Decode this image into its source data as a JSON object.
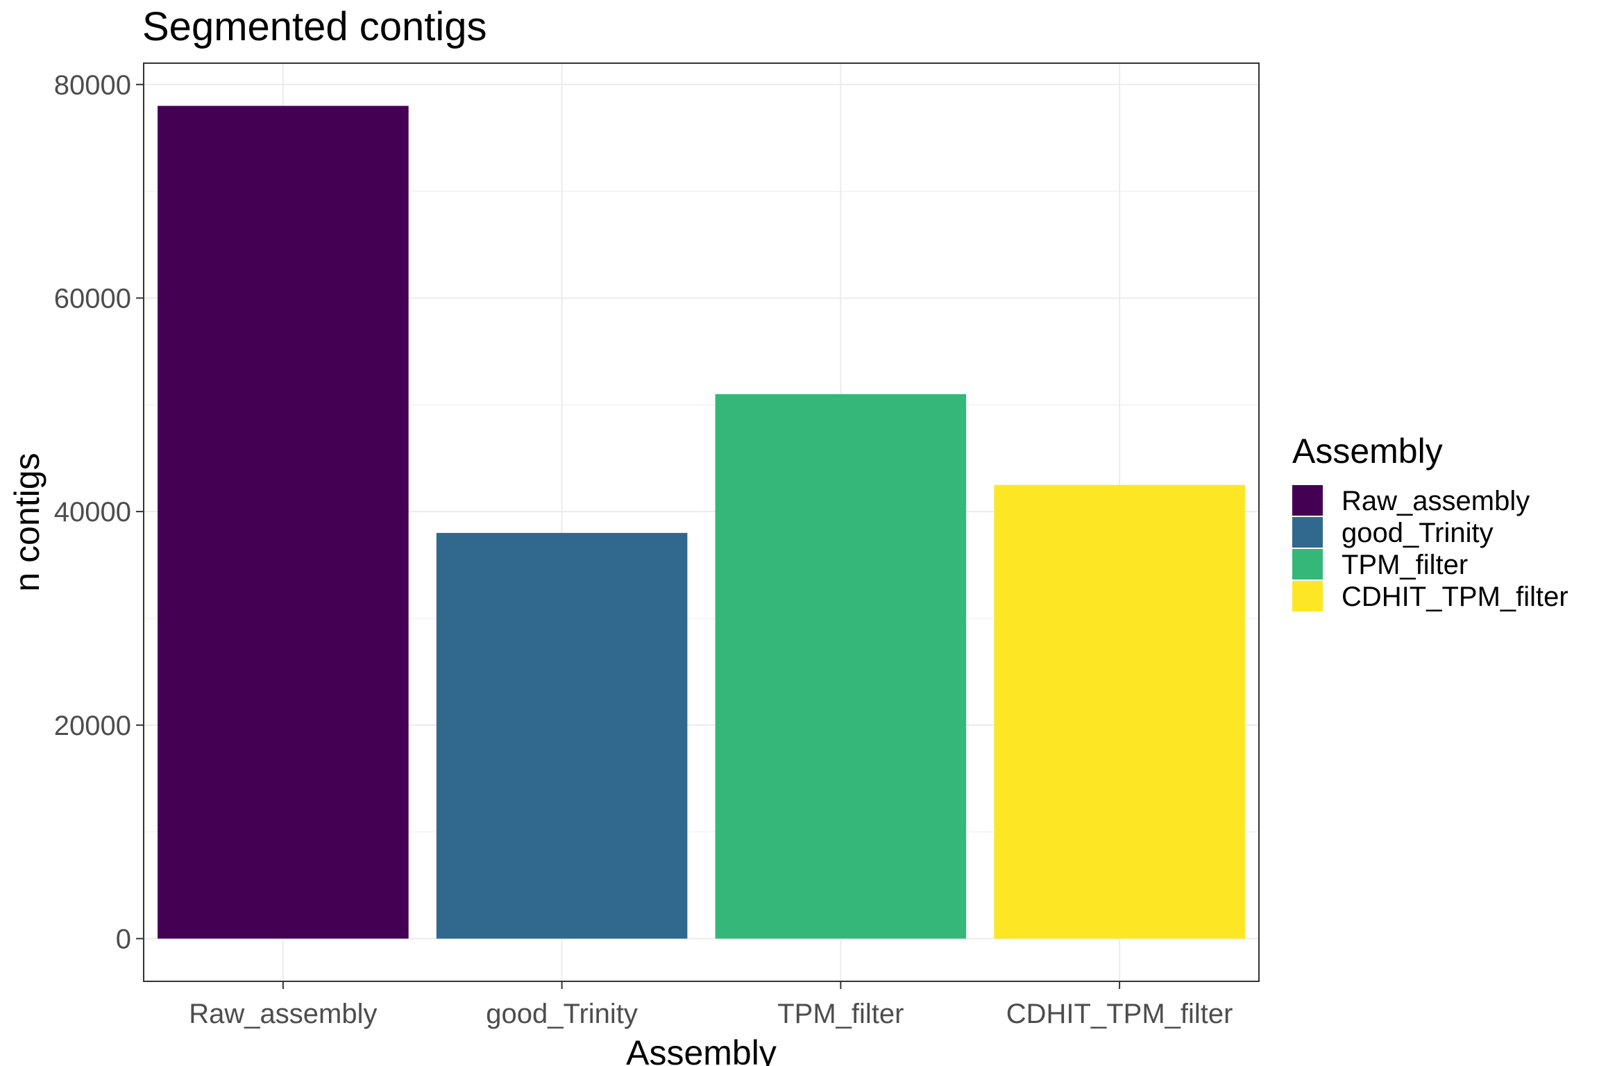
{
  "chart_data": {
    "type": "bar",
    "title": "Segmented contigs",
    "xlabel": "Assembly",
    "ylabel": "n contigs",
    "categories": [
      "Raw_assembly",
      "good_Trinity",
      "TPM_filter",
      "CDHIT_TPM_filter"
    ],
    "values": [
      78000,
      38000,
      51000,
      42500
    ],
    "colors": [
      "#440154",
      "#31688E",
      "#35B779",
      "#FDE725"
    ],
    "ylim": [
      -4000,
      82000
    ],
    "yticks": [
      0,
      20000,
      40000,
      60000,
      80000
    ],
    "ytick_labels": [
      "0",
      "20000",
      "40000",
      "60000",
      "80000"
    ],
    "grid": true,
    "legend": {
      "title": "Assembly",
      "placement": "right",
      "entries": [
        "Raw_assembly",
        "good_Trinity",
        "TPM_filter",
        "CDHIT_TPM_filter"
      ]
    }
  }
}
